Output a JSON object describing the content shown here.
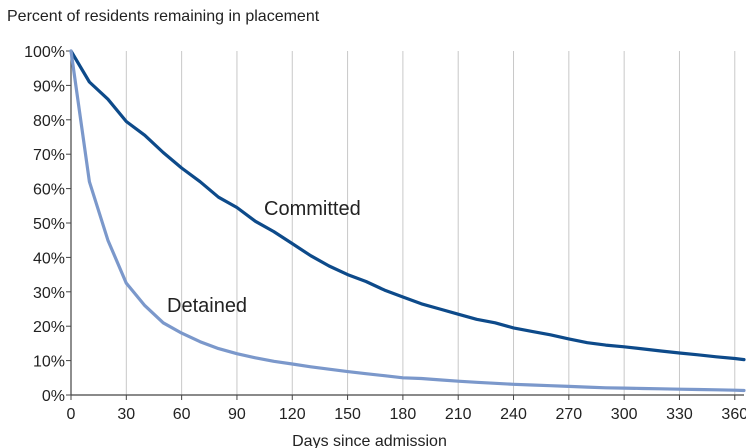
{
  "chart_data": {
    "type": "line",
    "ylabel": "Percent of residents remaining in placement",
    "xlabel": "Days since admission",
    "xlim": [
      0,
      365
    ],
    "ylim": [
      0,
      100
    ],
    "x_ticks": [
      0,
      30,
      60,
      90,
      120,
      150,
      180,
      210,
      240,
      270,
      300,
      330,
      360
    ],
    "y_ticks": [
      "0%",
      "10%",
      "20%",
      "30%",
      "40%",
      "50%",
      "60%",
      "70%",
      "80%",
      "90%",
      "100%"
    ],
    "grid": "vertical",
    "series": [
      {
        "name": "Committed",
        "color": "#0d4a8a",
        "x": [
          0,
          10,
          20,
          30,
          40,
          50,
          60,
          70,
          80,
          90,
          100,
          110,
          120,
          130,
          140,
          150,
          160,
          170,
          180,
          190,
          200,
          210,
          220,
          230,
          240,
          250,
          260,
          270,
          280,
          290,
          300,
          310,
          320,
          330,
          340,
          350,
          360,
          365
        ],
        "y": [
          100,
          91,
          86,
          79.5,
          75.5,
          70.5,
          66,
          62,
          57.5,
          54.5,
          50.5,
          47.5,
          44,
          40.5,
          37.5,
          35,
          33,
          30.5,
          28.5,
          26.5,
          25,
          23.5,
          22,
          21,
          19.5,
          18.5,
          17.5,
          16.3,
          15.2,
          14.5,
          14,
          13.4,
          12.8,
          12.2,
          11.7,
          11.1,
          10.6,
          10.3
        ]
      },
      {
        "name": "Detained",
        "color": "#7b98cb",
        "x": [
          0,
          10,
          20,
          30,
          40,
          50,
          60,
          70,
          80,
          90,
          100,
          110,
          120,
          130,
          140,
          150,
          160,
          170,
          180,
          190,
          200,
          210,
          220,
          230,
          240,
          250,
          260,
          270,
          280,
          290,
          300,
          310,
          320,
          330,
          340,
          350,
          360,
          365
        ],
        "y": [
          100,
          62,
          45,
          32.5,
          26,
          21,
          18,
          15.5,
          13.5,
          12,
          10.8,
          9.8,
          9,
          8.2,
          7.5,
          6.8,
          6.2,
          5.6,
          5,
          4.8,
          4.4,
          4,
          3.7,
          3.4,
          3.1,
          2.9,
          2.7,
          2.5,
          2.3,
          2.1,
          2,
          1.9,
          1.8,
          1.7,
          1.6,
          1.5,
          1.4,
          1.3
        ]
      }
    ]
  }
}
